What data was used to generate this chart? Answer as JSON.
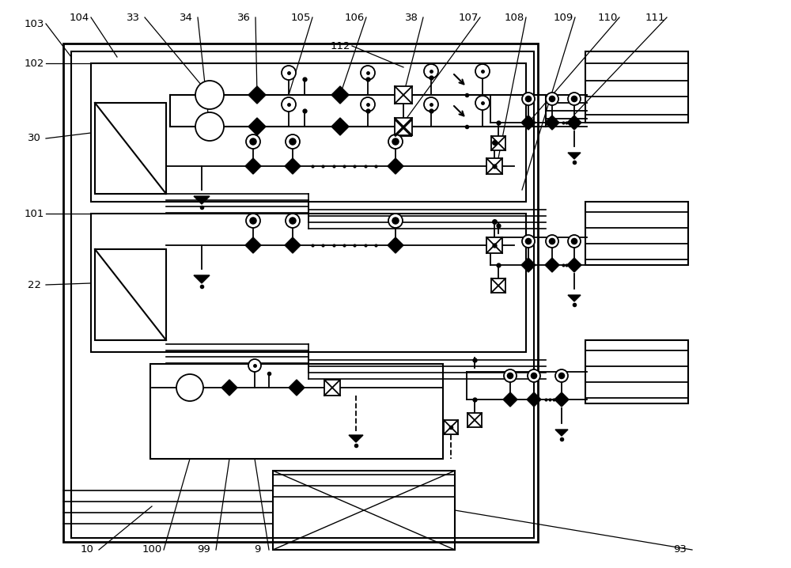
{
  "bg_color": "#ffffff",
  "line_color": "#000000",
  "fig_width": 10.0,
  "fig_height": 7.18
}
